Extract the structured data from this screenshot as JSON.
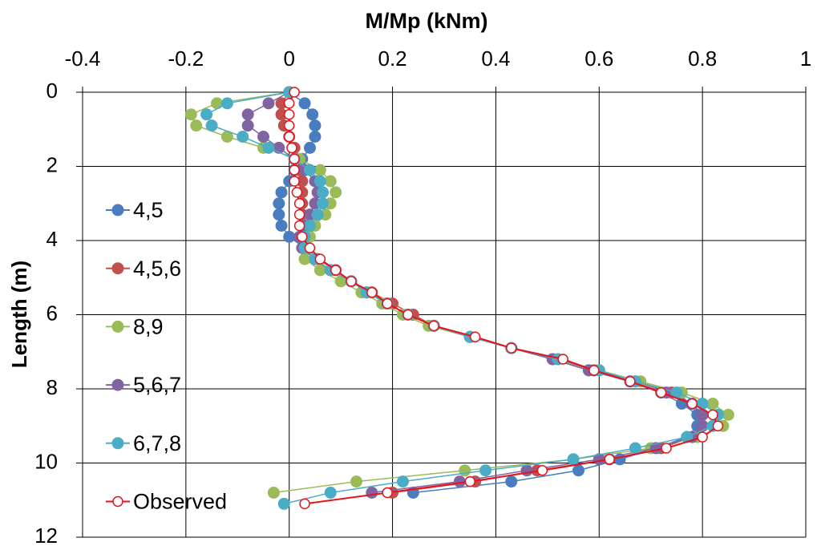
{
  "chart_data": {
    "type": "line",
    "title": "M/Mp (kNm)",
    "ylabel": "Length (m)",
    "x_axis_position": "top",
    "y_inverted": true,
    "grid": true,
    "legend": "left",
    "xlim": [
      -0.4,
      1
    ],
    "xticks": [
      -0.4,
      -0.2,
      0,
      0.2,
      0.4,
      0.6,
      0.8,
      1
    ],
    "ylim": [
      0,
      12
    ],
    "yticks": [
      0,
      2,
      4,
      6,
      8,
      10,
      12
    ],
    "y": [
      0,
      0.3,
      0.6,
      0.9,
      1.2,
      1.5,
      1.8,
      2.1,
      2.4,
      2.7,
      3.0,
      3.3,
      3.6,
      3.9,
      4.2,
      4.5,
      4.8,
      5.1,
      5.4,
      5.7,
      6.0,
      6.3,
      6.6,
      6.9,
      7.2,
      7.5,
      7.8,
      8.1,
      8.4,
      8.7,
      9.0,
      9.3,
      9.6,
      9.9,
      10.2,
      10.5,
      10.8,
      11.1
    ],
    "series": [
      {
        "name": "4,5",
        "color": "#4a7cc0",
        "marker": "filled",
        "values": [
          0,
          0.03,
          0.045,
          0.05,
          0.05,
          0.04,
          0.025,
          0.01,
          0,
          -0.015,
          -0.02,
          -0.02,
          -0.015,
          0,
          0.03,
          0.05,
          0.08,
          0.12,
          0.15,
          0.19,
          0.23,
          0.28,
          0.35,
          0.43,
          0.51,
          0.58,
          0.66,
          0.72,
          0.76,
          0.79,
          0.79,
          0.77,
          0.71,
          0.64,
          0.56,
          0.43,
          0.24,
          null
        ]
      },
      {
        "name": "4,5,6",
        "color": "#c0504d",
        "marker": "filled",
        "values": [
          0,
          -0.015,
          -0.015,
          -0.01,
          0,
          0.01,
          0.015,
          0.02,
          0.025,
          0.025,
          0.025,
          0.025,
          0.025,
          0.025,
          0.035,
          0.055,
          0.09,
          0.12,
          0.16,
          0.2,
          0.24,
          0.28,
          0.35,
          0.43,
          0.52,
          0.59,
          0.67,
          0.74,
          0.78,
          0.8,
          0.8,
          0.78,
          0.72,
          0.62,
          0.48,
          0.36,
          0.2,
          null
        ]
      },
      {
        "name": "8,9",
        "color": "#9bbb59",
        "marker": "filled",
        "values": [
          0,
          -0.14,
          -0.19,
          -0.18,
          -0.12,
          -0.05,
          0.02,
          0.06,
          0.08,
          0.09,
          0.08,
          0.07,
          0.05,
          0.04,
          0.03,
          0.03,
          0.06,
          0.1,
          0.14,
          0.18,
          0.22,
          0.27,
          0.35,
          0.43,
          0.52,
          0.6,
          0.68,
          0.76,
          0.82,
          0.85,
          0.84,
          0.79,
          0.7,
          0.55,
          0.34,
          0.13,
          -0.03,
          null
        ]
      },
      {
        "name": "5,6,7",
        "color": "#8064a2",
        "marker": "filled",
        "values": [
          0,
          -0.04,
          -0.08,
          -0.08,
          -0.05,
          -0.02,
          0.01,
          0.03,
          0.05,
          0.055,
          0.05,
          0.04,
          0.03,
          0.02,
          0.025,
          0.05,
          0.08,
          0.12,
          0.15,
          0.19,
          0.23,
          0.28,
          0.35,
          0.43,
          0.51,
          0.58,
          0.66,
          0.73,
          0.78,
          0.8,
          0.8,
          0.78,
          0.71,
          0.6,
          0.46,
          0.33,
          0.16,
          null
        ]
      },
      {
        "name": "6,7,8",
        "color": "#4bacc6",
        "marker": "filled",
        "values": [
          0,
          -0.12,
          -0.16,
          -0.15,
          -0.09,
          -0.04,
          0.01,
          0.04,
          0.06,
          0.065,
          0.065,
          0.055,
          0.04,
          0.03,
          0.03,
          0.05,
          0.08,
          0.12,
          0.15,
          0.19,
          0.23,
          0.28,
          0.35,
          0.43,
          0.52,
          0.6,
          0.67,
          0.75,
          0.8,
          0.83,
          0.82,
          0.77,
          0.67,
          0.55,
          0.38,
          0.22,
          0.08,
          -0.01
        ]
      },
      {
        "name": "Observed",
        "color": "#e3151c",
        "marker": "open",
        "values": [
          0.01,
          0,
          0,
          0,
          0,
          0.005,
          0.01,
          0.01,
          0.01,
          0.015,
          0.02,
          0.02,
          0.02,
          0.025,
          0.04,
          0.06,
          0.09,
          0.12,
          0.16,
          0.19,
          0.23,
          0.28,
          0.36,
          0.43,
          0.53,
          0.59,
          0.66,
          0.72,
          0.78,
          0.82,
          0.83,
          0.8,
          0.73,
          0.62,
          0.49,
          0.35,
          0.19,
          0.03
        ]
      }
    ]
  }
}
